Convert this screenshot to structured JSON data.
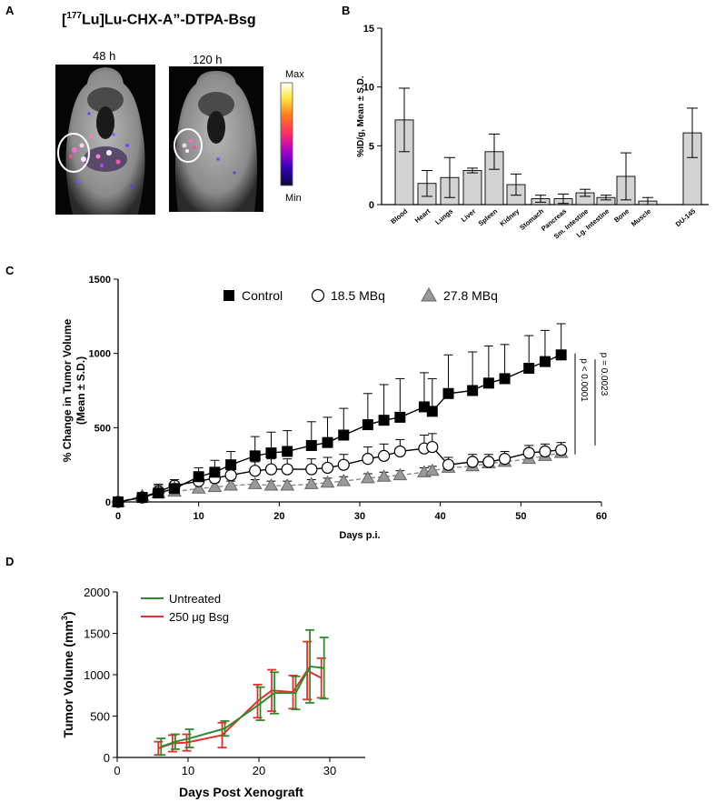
{
  "panel_labels": {
    "a": "A",
    "b": "B",
    "c": "C",
    "d": "D"
  },
  "panel_a": {
    "title_prefix": "[",
    "title_sup": "177",
    "title_suffix": "Lu]Lu-CHX-A”-DTPA-Bsg",
    "image_left_label": "48 h",
    "image_right_label": "120 h",
    "colorbar_max": "Max",
    "colorbar_min": "Min",
    "colorbar_colors": [
      "#ffffff",
      "#ffe840",
      "#ff7a1a",
      "#ff2a6a",
      "#b000c8",
      "#3a00c0",
      "#08083a"
    ]
  },
  "chart_data": [
    {
      "id": "B",
      "type": "bar",
      "ylabel": "%ID/g, Mean ± S.D.",
      "ylim": [
        0,
        15
      ],
      "yticks": [
        0,
        5,
        10,
        15
      ],
      "categories": [
        "Blood",
        "Heart",
        "Lungs",
        "Liver",
        "Spleen",
        "Kidney",
        "Stomach",
        "Pancreas",
        "Sm. Intestine",
        "Lg. Intestine",
        "Bone",
        "Muscle",
        "DU-145"
      ],
      "values": [
        7.2,
        1.8,
        2.3,
        2.9,
        4.5,
        1.7,
        0.5,
        0.5,
        1.0,
        0.6,
        2.4,
        0.3,
        6.1
      ],
      "errors": [
        2.7,
        1.1,
        1.7,
        0.2,
        1.5,
        0.9,
        0.3,
        0.4,
        0.3,
        0.2,
        2.0,
        0.3,
        2.1
      ],
      "bar_color": "#d3d3d3"
    },
    {
      "id": "C",
      "type": "line",
      "xlabel": "Days p.i.",
      "ylabel_line1": "% Change in Tumor Volume",
      "ylabel_line2": "(Mean ± S.D.)",
      "xlim": [
        0,
        60
      ],
      "ylim": [
        0,
        1500
      ],
      "xticks": [
        0,
        10,
        20,
        30,
        40,
        50,
        60
      ],
      "yticks": [
        0,
        500,
        1000,
        1500
      ],
      "series": [
        {
          "name": "Control",
          "marker": "square",
          "x": [
            0,
            3,
            5,
            7,
            10,
            12,
            14,
            17,
            19,
            21,
            24,
            26,
            28,
            31,
            33,
            35,
            38,
            39,
            41,
            44,
            46,
            48,
            51,
            53,
            55
          ],
          "y": [
            0,
            30,
            60,
            90,
            170,
            200,
            250,
            310,
            330,
            340,
            380,
            400,
            450,
            520,
            550,
            570,
            640,
            610,
            730,
            750,
            800,
            830,
            900,
            945,
            990
          ],
          "sd": [
            0,
            30,
            60,
            60,
            60,
            80,
            90,
            130,
            140,
            140,
            160,
            170,
            180,
            210,
            240,
            260,
            230,
            220,
            260,
            260,
            250,
            230,
            220,
            210,
            210
          ]
        },
        {
          "name": "18.5 MBq",
          "marker": "circle",
          "x": [
            0,
            3,
            5,
            7,
            10,
            12,
            14,
            17,
            19,
            21,
            24,
            26,
            28,
            31,
            33,
            35,
            38,
            39,
            41,
            44,
            46,
            48,
            51,
            53,
            55
          ],
          "y": [
            0,
            30,
            70,
            110,
            140,
            160,
            180,
            210,
            220,
            220,
            220,
            230,
            250,
            290,
            310,
            340,
            360,
            370,
            250,
            270,
            270,
            290,
            330,
            340,
            350
          ],
          "sd": [
            0,
            20,
            40,
            40,
            40,
            50,
            60,
            60,
            70,
            70,
            70,
            70,
            70,
            80,
            80,
            80,
            90,
            90,
            50,
            50,
            50,
            50,
            50,
            50,
            50
          ]
        },
        {
          "name": "27.8 MBq",
          "marker": "triangle",
          "x": [
            0,
            3,
            5,
            7,
            10,
            12,
            14,
            17,
            19,
            21,
            24,
            26,
            28,
            31,
            33,
            35,
            38,
            39,
            41,
            44,
            46,
            48,
            51,
            53,
            55
          ],
          "y": [
            0,
            40,
            60,
            70,
            90,
            100,
            110,
            120,
            110,
            110,
            120,
            130,
            140,
            160,
            170,
            180,
            200,
            210,
            230,
            240,
            260,
            270,
            290,
            310,
            330
          ],
          "sd": [
            0,
            20,
            30,
            30,
            30,
            30,
            30,
            30,
            30,
            30,
            30,
            30,
            30,
            30,
            30,
            30,
            30,
            30,
            30,
            30,
            30,
            30,
            30,
            30,
            30
          ]
        }
      ],
      "annotations": [
        "p < 0.0001",
        "p = 0.0023"
      ]
    },
    {
      "id": "D",
      "type": "line",
      "xlabel": "Days Post Xenograft",
      "ylabel": "Tumor Volume (mm",
      "ylabel_sup": "3",
      "ylabel_end": ")",
      "xlim": [
        0,
        35
      ],
      "ylim": [
        0,
        2000
      ],
      "xticks": [
        0,
        10,
        20,
        30
      ],
      "yticks": [
        0,
        500,
        1000,
        1500,
        2000
      ],
      "series": [
        {
          "name": "Untreated",
          "color": "#2e8b2e",
          "x": [
            6,
            8,
            10,
            15,
            20,
            22,
            25,
            27,
            29
          ],
          "y": [
            130,
            190,
            230,
            350,
            650,
            780,
            780,
            1100,
            1080
          ],
          "sd": [
            100,
            90,
            110,
            90,
            200,
            250,
            200,
            440,
            370
          ]
        },
        {
          "name": "250 μg Bsg",
          "color": "#e8302a",
          "x": [
            6,
            8,
            10,
            15,
            20,
            22,
            25,
            27,
            29
          ],
          "y": [
            110,
            170,
            180,
            270,
            680,
            810,
            790,
            1050,
            960
          ],
          "sd": [
            80,
            100,
            100,
            150,
            200,
            250,
            200,
            350,
            240
          ]
        }
      ]
    }
  ]
}
